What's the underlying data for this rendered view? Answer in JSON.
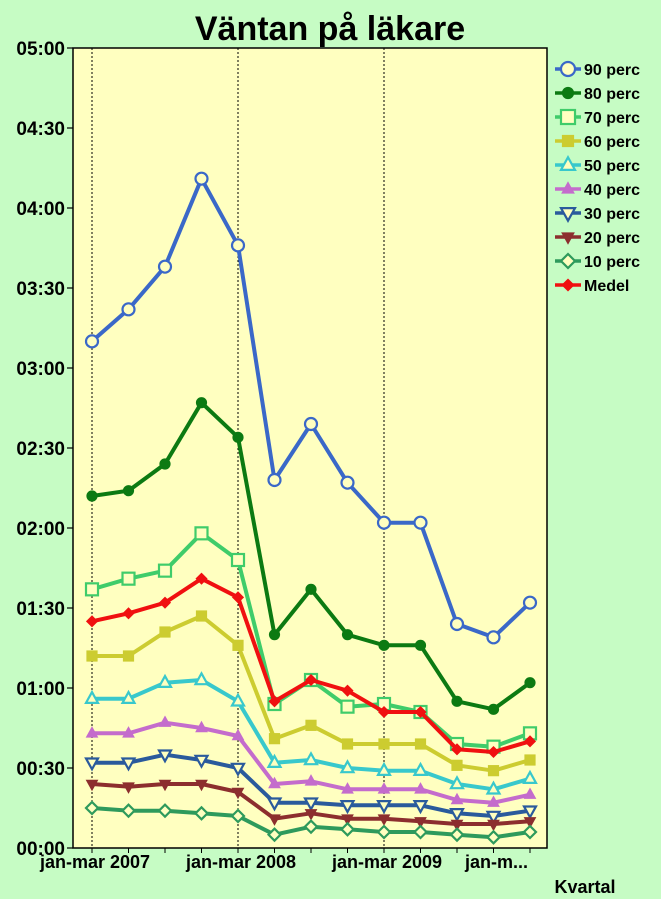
{
  "chart_data": {
    "type": "line",
    "title": "Väntan på läkare",
    "xlabel": "Kvartal",
    "ylabel": "",
    "ylim": [
      0,
      300
    ],
    "y_unit": "minutes",
    "y_ticks": [
      "00:00",
      "00:30",
      "01:00",
      "01:30",
      "02:00",
      "02:30",
      "03:00",
      "03:30",
      "04:00",
      "04:30",
      "05:00"
    ],
    "x_tick_labels": [
      "jan-mar 2007",
      "jan-mar 2008",
      "jan-mar 2009",
      "jan-m..."
    ],
    "x_tick_indices": [
      0,
      4,
      8,
      11
    ],
    "vertical_gridlines_at": [
      0,
      4,
      8
    ],
    "background": "#ffffc0",
    "legend_position": "right",
    "series": [
      {
        "name": "90 perc",
        "color": "#3a68c8",
        "marker": "circle-open",
        "values": [
          190,
          202,
          218,
          251,
          226,
          138,
          159,
          137,
          122,
          122,
          84,
          79,
          92
        ]
      },
      {
        "name": "80 perc",
        "color": "#0c7a12",
        "marker": "circle-filled",
        "values": [
          132,
          134,
          144,
          167,
          154,
          80,
          97,
          80,
          76,
          76,
          55,
          52,
          62
        ]
      },
      {
        "name": "70 perc",
        "color": "#3fcc6a",
        "marker": "square-open",
        "values": [
          97,
          101,
          104,
          118,
          108,
          54,
          63,
          53,
          54,
          51,
          39,
          38,
          43
        ]
      },
      {
        "name": "60 perc",
        "color": "#cccc30",
        "marker": "square-filled",
        "values": [
          72,
          72,
          81,
          87,
          76,
          41,
          46,
          39,
          39,
          39,
          31,
          29,
          33
        ]
      },
      {
        "name": "50 perc",
        "color": "#38c8cc",
        "marker": "triangle-up-open",
        "values": [
          56,
          56,
          62,
          63,
          55,
          32,
          33,
          30,
          29,
          29,
          24,
          22,
          26
        ]
      },
      {
        "name": "40 perc",
        "color": "#c46ccc",
        "marker": "triangle-up-filled",
        "values": [
          43,
          43,
          47,
          45,
          42,
          24,
          25,
          22,
          22,
          22,
          18,
          17,
          20
        ]
      },
      {
        "name": "30 perc",
        "color": "#2a5a9c",
        "marker": "triangle-down-open",
        "values": [
          32,
          32,
          35,
          33,
          30,
          17,
          17,
          16,
          16,
          16,
          13,
          12,
          14
        ]
      },
      {
        "name": "20 perc",
        "color": "#8c2e2e",
        "marker": "triangle-down-filled",
        "values": [
          24,
          23,
          24,
          24,
          21,
          11,
          13,
          11,
          11,
          10,
          9,
          9,
          10
        ]
      },
      {
        "name": "10 perc",
        "color": "#2e9a5c",
        "marker": "diamond-open",
        "values": [
          15,
          14,
          14,
          13,
          12,
          5,
          8,
          7,
          6,
          6,
          5,
          4,
          6
        ]
      },
      {
        "name": "Medel",
        "color": "#f01010",
        "marker": "diamond-filled",
        "values": [
          85,
          88,
          92,
          101,
          94,
          55,
          63,
          59,
          51,
          51,
          37,
          36,
          40
        ]
      }
    ]
  }
}
